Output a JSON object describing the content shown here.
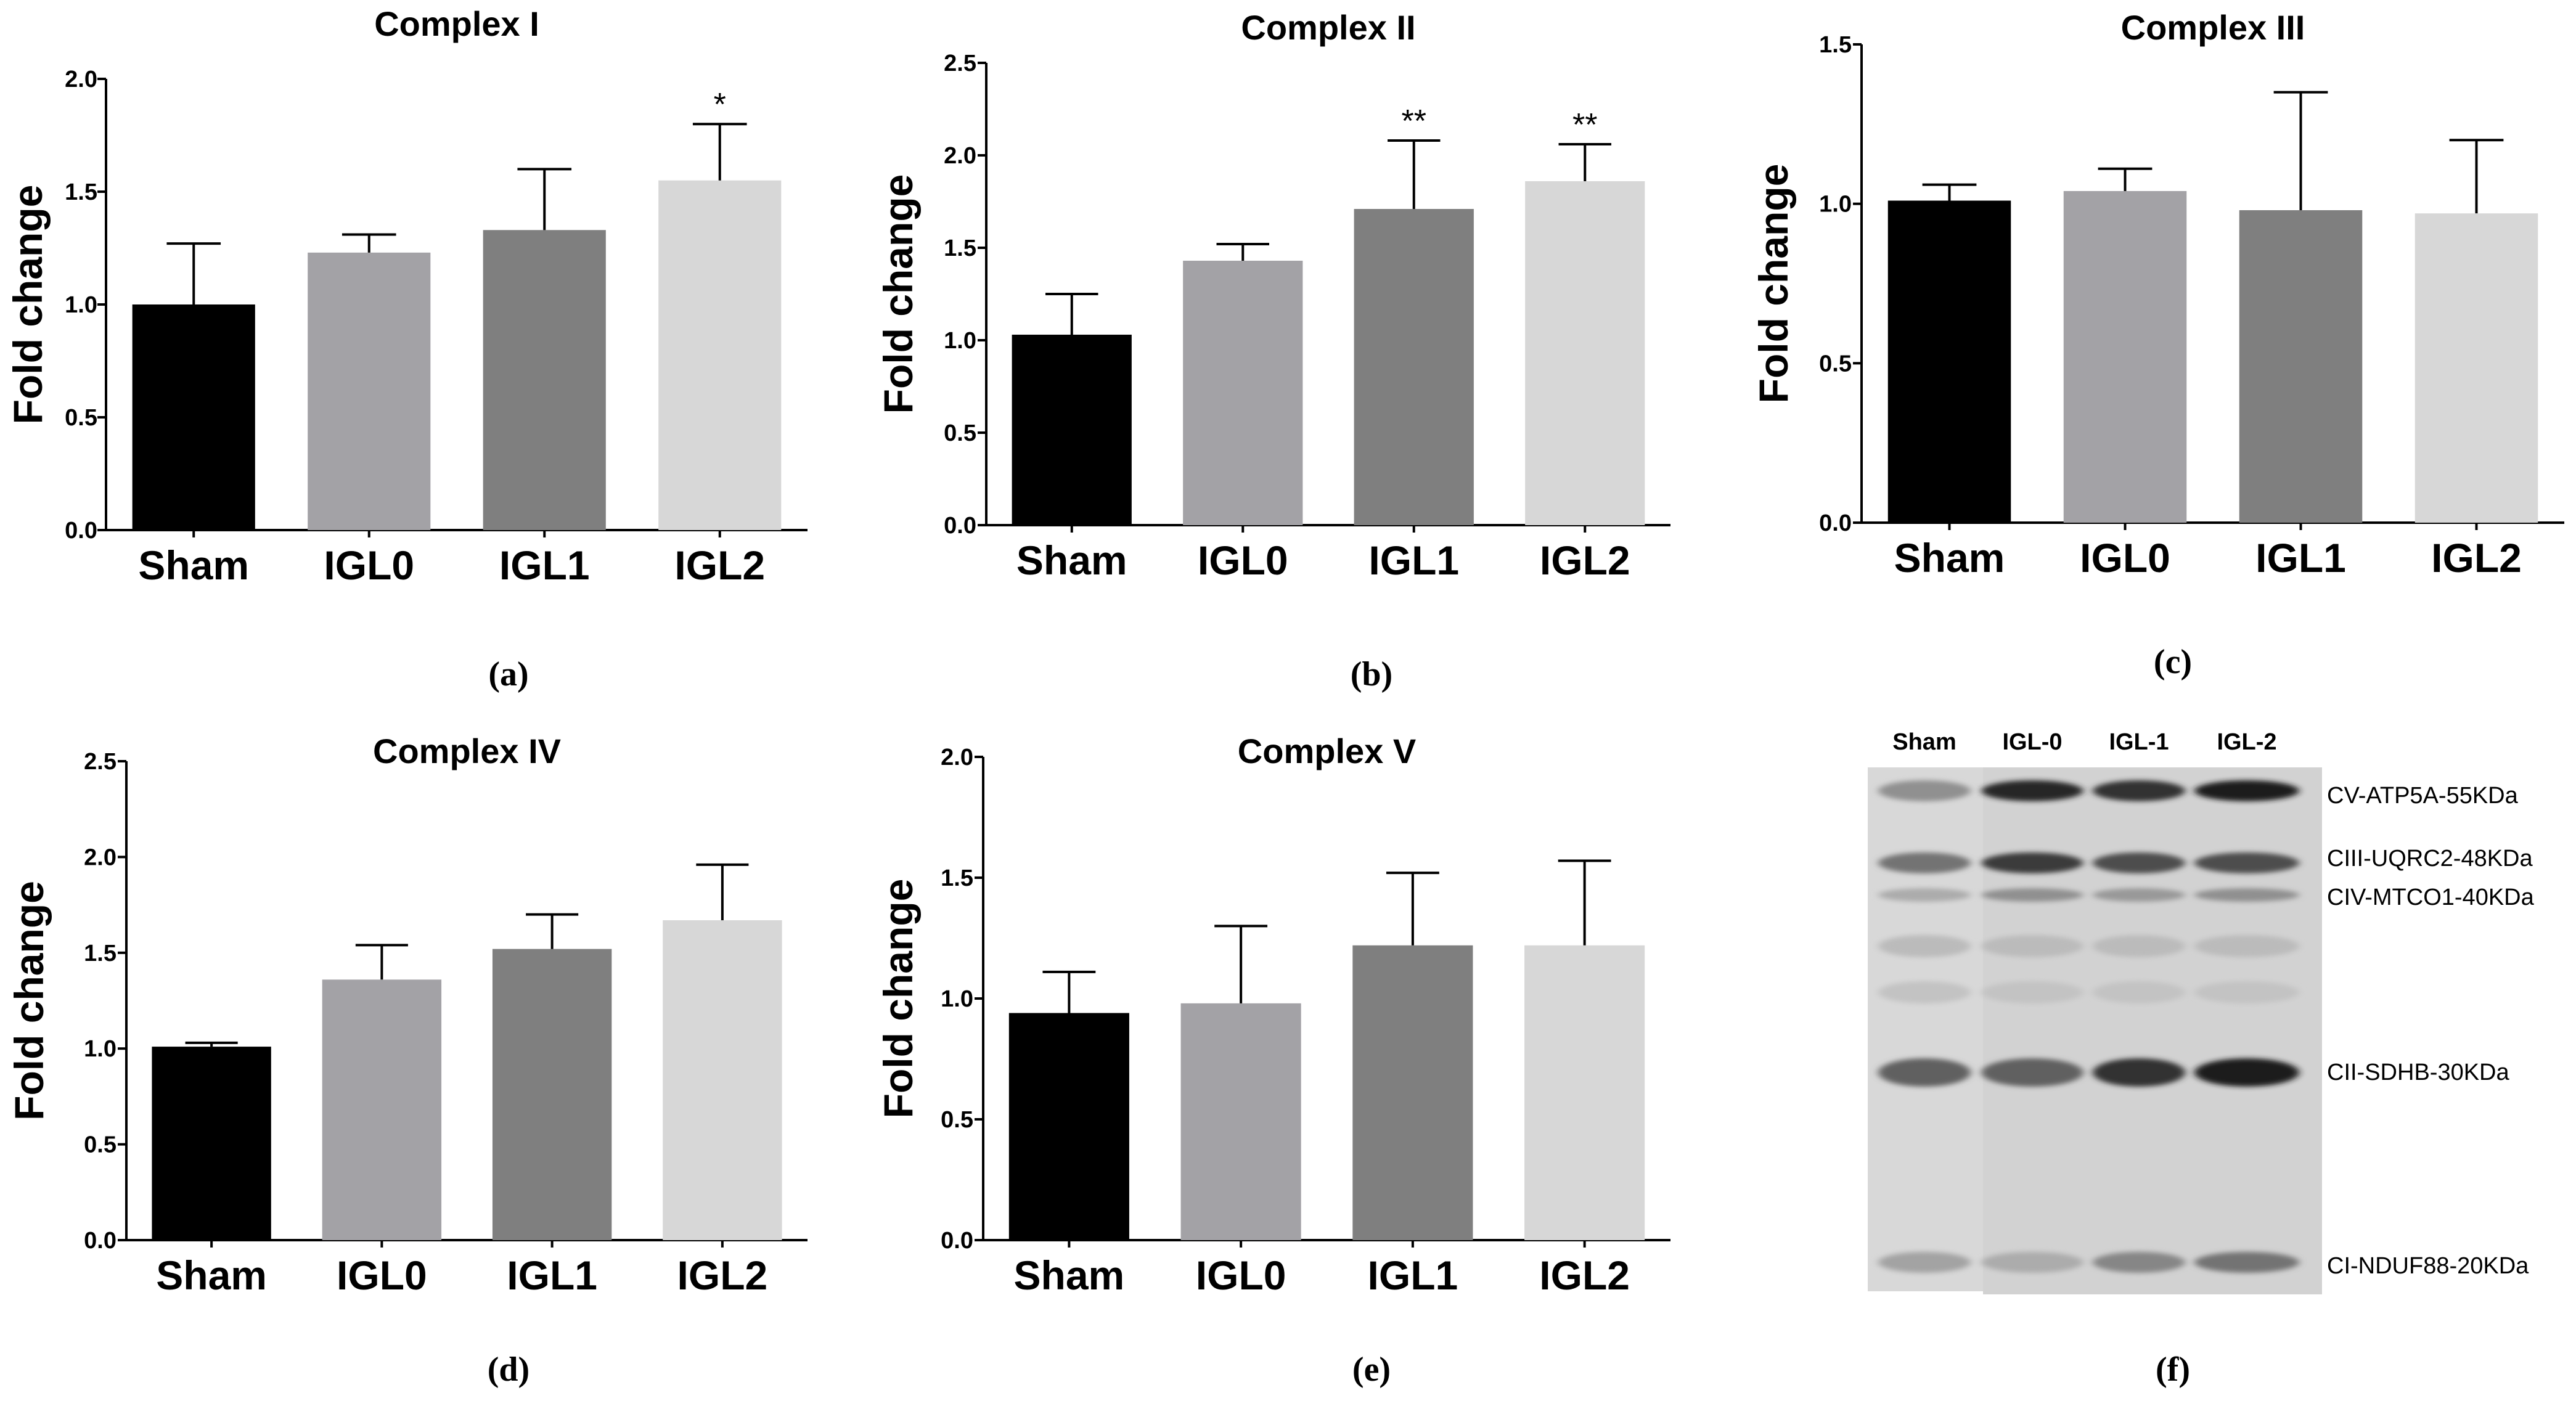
{
  "chart_data": [
    {
      "type": "bar",
      "panel": "(a)",
      "title": "Complex I",
      "ylabel": "Fold change",
      "xlabel": "",
      "categories": [
        "Sham",
        "IGL0",
        "IGL1",
        "IGL2"
      ],
      "values": [
        1.0,
        1.23,
        1.33,
        1.55
      ],
      "errors": [
        0.27,
        0.08,
        0.27,
        0.25
      ],
      "significance": [
        "",
        "",
        "",
        "*"
      ],
      "ylim": [
        0,
        2.0
      ],
      "yticks": [
        0.0,
        0.5,
        1.0,
        1.5,
        2.0
      ],
      "ytick_labels": [
        "0.0",
        "0.5",
        "1.0",
        "1.5",
        "2.0"
      ]
    },
    {
      "type": "bar",
      "panel": "(b)",
      "title": "Complex II",
      "ylabel": "Fold change",
      "xlabel": "",
      "categories": [
        "Sham",
        "IGL0",
        "IGL1",
        "IGL2"
      ],
      "values": [
        1.03,
        1.43,
        1.71,
        1.86
      ],
      "errors": [
        0.22,
        0.09,
        0.37,
        0.2
      ],
      "significance": [
        "",
        "",
        "**",
        "**"
      ],
      "ylim": [
        0,
        2.5
      ],
      "yticks": [
        0.0,
        0.5,
        1.0,
        1.5,
        2.0,
        2.5
      ],
      "ytick_labels": [
        "0.0",
        "0.5",
        "1.0",
        "1.5",
        "2.0",
        "2.5"
      ]
    },
    {
      "type": "bar",
      "panel": "(c)",
      "title": "Complex III",
      "ylabel": "Fold change",
      "xlabel": "",
      "categories": [
        "Sham",
        "IGL0",
        "IGL1",
        "IGL2"
      ],
      "values": [
        1.01,
        1.04,
        0.98,
        0.97
      ],
      "errors": [
        0.05,
        0.07,
        0.37,
        0.23
      ],
      "significance": [
        "",
        "",
        "",
        ""
      ],
      "ylim": [
        0,
        1.5
      ],
      "yticks": [
        0.0,
        0.5,
        1.0,
        1.5
      ],
      "ytick_labels": [
        "0.0",
        "0.5",
        "1.0",
        "1.5"
      ]
    },
    {
      "type": "bar",
      "panel": "(d)",
      "title": "Complex IV",
      "ylabel": "Fold change",
      "xlabel": "",
      "categories": [
        "Sham",
        "IGL0",
        "IGL1",
        "IGL2"
      ],
      "values": [
        1.01,
        1.36,
        1.52,
        1.67
      ],
      "errors": [
        0.02,
        0.18,
        0.18,
        0.29
      ],
      "significance": [
        "",
        "",
        "",
        ""
      ],
      "ylim": [
        0,
        2.5
      ],
      "yticks": [
        0.0,
        0.5,
        1.0,
        1.5,
        2.0,
        2.5
      ],
      "ytick_labels": [
        "0.0",
        "0.5",
        "1.0",
        "1.5",
        "2.0",
        "2.5"
      ]
    },
    {
      "type": "bar",
      "panel": "(e)",
      "title": "Complex V",
      "ylabel": "Fold change",
      "xlabel": "",
      "categories": [
        "Sham",
        "IGL0",
        "IGL1",
        "IGL2"
      ],
      "values": [
        0.94,
        0.98,
        1.22,
        1.22
      ],
      "errors": [
        0.17,
        0.32,
        0.3,
        0.35
      ],
      "significance": [
        "",
        "",
        "",
        ""
      ],
      "ylim": [
        0,
        2.0
      ],
      "yticks": [
        0.0,
        0.5,
        1.0,
        1.5,
        2.0
      ],
      "ytick_labels": [
        "0.0",
        "0.5",
        "1.0",
        "1.5",
        "2.0"
      ]
    }
  ],
  "bar_colors": [
    "#000000",
    "#a3a2a6",
    "#7f7f7f",
    "#d7d7d7"
  ],
  "blot": {
    "panel": "(f)",
    "lanes": [
      "Sham",
      "IGL-0",
      "IGL-1",
      "IGL-2"
    ],
    "bands": [
      {
        "label": "CV-ATP5A-55KDa",
        "intensity": [
          0.35,
          0.9,
          0.85,
          0.95
        ]
      },
      {
        "label": "CIII-UQRC2-48KDa",
        "intensity": [
          0.5,
          0.8,
          0.7,
          0.7
        ]
      },
      {
        "label": "CIV-MTCO1-40KDa",
        "intensity": [
          0.2,
          0.35,
          0.3,
          0.35
        ]
      },
      {
        "label": "CII-SDHB-30KDa",
        "intensity": [
          0.6,
          0.6,
          0.85,
          0.95
        ]
      },
      {
        "label": "CI-NDUF88-20KDa",
        "intensity": [
          0.25,
          0.2,
          0.4,
          0.5
        ]
      }
    ]
  }
}
